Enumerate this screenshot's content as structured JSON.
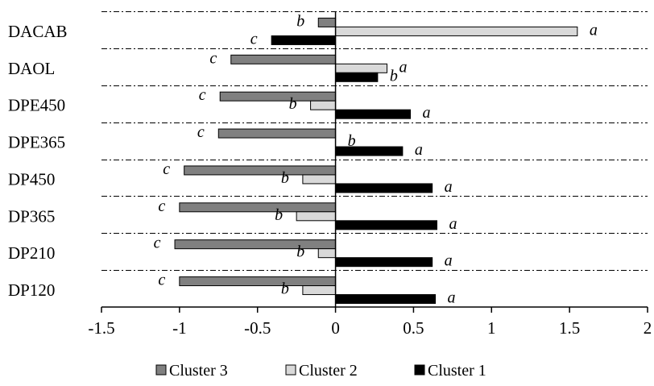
{
  "chart_data": {
    "type": "bar",
    "orientation": "horizontal",
    "categories": [
      "DACAB",
      "DAOL",
      "DPE450",
      "DPE365",
      "DP450",
      "DP365",
      "DP210",
      "DP120"
    ],
    "series": [
      {
        "name": "Cluster 3",
        "color": "#808080",
        "values": [
          -0.11,
          -0.67,
          -0.74,
          -0.75,
          -0.97,
          -1.0,
          -1.03,
          -1.0
        ],
        "letters": [
          "b",
          "c",
          "c",
          "c",
          "c",
          "c",
          "c",
          "c"
        ]
      },
      {
        "name": "Cluster 2",
        "color": "#d9d9d9",
        "values": [
          1.55,
          0.33,
          -0.16,
          0.0,
          -0.21,
          -0.25,
          -0.11,
          -0.21
        ],
        "letters": [
          "a",
          "a",
          "b",
          "b",
          "b",
          "b",
          "b",
          "b"
        ]
      },
      {
        "name": "Cluster 1",
        "color": "#000000",
        "values": [
          -0.41,
          0.27,
          0.48,
          0.43,
          0.62,
          0.65,
          0.62,
          0.64
        ],
        "letters": [
          "c",
          "b",
          "a",
          "a",
          "a",
          "a",
          "a",
          "a"
        ]
      }
    ],
    "xlim": [
      -1.5,
      2
    ],
    "xticks": [
      -1.5,
      -1,
      -0.5,
      0,
      0.5,
      1,
      1.5,
      2
    ],
    "xtick_labels": [
      "-1.5",
      "-1",
      "-0.5",
      "0",
      "0.5",
      "1",
      "1.5",
      "2"
    ],
    "legend": {
      "position": "bottom",
      "items": [
        "Cluster 3",
        "Cluster 2",
        "Cluster 1"
      ]
    },
    "grid": "dash-dot horizontal lines between categories",
    "title": "",
    "xlabel": "",
    "ylabel": ""
  }
}
